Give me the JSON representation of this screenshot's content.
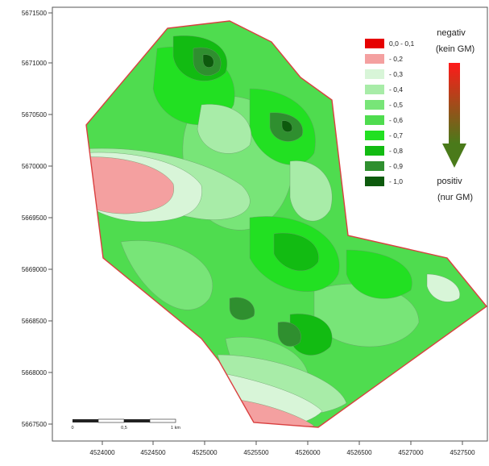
{
  "map": {
    "y_ticks": [
      "5671500",
      "5671000",
      "5670500",
      "5670000",
      "5669500",
      "5669000",
      "5668500",
      "5668000",
      "5667500"
    ],
    "x_ticks": [
      "4524000",
      "4524500",
      "4525000",
      "4525500",
      "4526000",
      "4526500",
      "4527000",
      "4527500"
    ]
  },
  "legend": {
    "top_title_1": "negativ",
    "top_title_2": "(kein GM)",
    "bottom_title_1": "positiv",
    "bottom_title_2": "(nur GM)",
    "classes": [
      {
        "label": "0,0 - 0,1",
        "color": "#e60000"
      },
      {
        "label": "- 0,2",
        "color": "#f4a0a0"
      },
      {
        "label": "- 0,3",
        "color": "#d8f5d8"
      },
      {
        "label": "- 0,4",
        "color": "#a8eca8"
      },
      {
        "label": "- 0,5",
        "color": "#78e578"
      },
      {
        "label": "- 0,6",
        "color": "#4fdc4f"
      },
      {
        "label": "- 0,7",
        "color": "#22e022"
      },
      {
        "label": "- 0,8",
        "color": "#12bb12"
      },
      {
        "label": "- 0,9",
        "color": "#2f8f2f"
      },
      {
        "label": "- 1,0",
        "color": "#0d5a0d"
      }
    ],
    "gradient_top_color": "#ff1a1a",
    "gradient_bottom_color": "#4a7a1a"
  },
  "scalebar": {
    "labels": [
      "0",
      "0,5",
      "1 km"
    ]
  },
  "colors": {
    "boundary": "#d94040",
    "frame": "#555555"
  }
}
